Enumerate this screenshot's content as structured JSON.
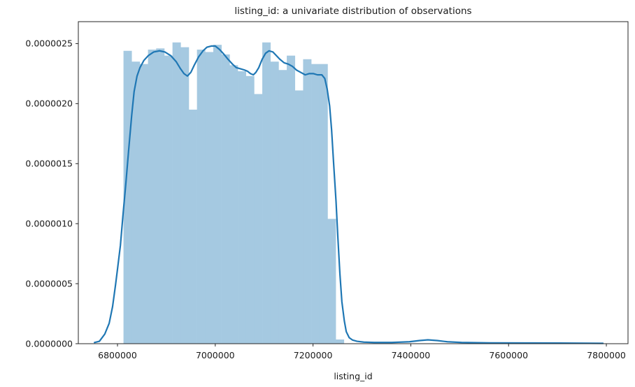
{
  "figure": {
    "background": "#ffffff"
  },
  "chart_data": {
    "type": "histogram_with_kde",
    "title": "listing_id: a univariate distribution of observations",
    "xlabel": "listing_id",
    "ylabel": "",
    "legend": "none",
    "grid": "off",
    "xlim": [
      6719900,
      7844300
    ],
    "ylim": [
      0,
      2.683e-06
    ],
    "x_ticks": {
      "values": [
        6800000,
        7000000,
        7200000,
        7400000,
        7600000,
        7800000
      ],
      "labels": [
        "6800000",
        "7000000",
        "7200000",
        "7400000",
        "7600000",
        "7800000"
      ]
    },
    "y_ticks": {
      "values": [
        0,
        5e-07,
        1e-06,
        1.5e-06,
        2e-06,
        2.5e-06
      ],
      "labels": [
        "0.0000000",
        "0.0000005",
        "0.0000010",
        "0.0000015",
        "0.0000020",
        "0.0000025"
      ]
    },
    "histogram": {
      "bin_start": 6812300,
      "bin_width": 16700,
      "fill_color": "#a5c9e1",
      "densities": [
        2.44e-06,
        2.35e-06,
        2.33e-06,
        2.45e-06,
        2.46e-06,
        2.4e-06,
        2.51e-06,
        2.47e-06,
        1.95e-06,
        2.45e-06,
        2.43e-06,
        2.49e-06,
        2.41e-06,
        2.32e-06,
        2.27e-06,
        2.23e-06,
        2.08e-06,
        2.51e-06,
        2.35e-06,
        2.28e-06,
        2.4e-06,
        2.11e-06,
        2.37e-06,
        2.33e-06,
        2.33e-06,
        1.04e-06,
        3.5e-08
      ]
    },
    "kde": {
      "line_color": "#1f77b4",
      "line_width": 2.2,
      "points": [
        [
          6753000,
          1e-08
        ],
        [
          6763000,
          2e-08
        ],
        [
          6774000,
          8e-08
        ],
        [
          6783000,
          1.7e-07
        ],
        [
          6790000,
          3.1e-07
        ],
        [
          6796000,
          4.9e-07
        ],
        [
          6800000,
          6.2e-07
        ],
        [
          6806000,
          8.2e-07
        ],
        [
          6811000,
          1.06e-06
        ],
        [
          6817000,
          1.33e-06
        ],
        [
          6823000,
          1.62e-06
        ],
        [
          6829000,
          1.9e-06
        ],
        [
          6834000,
          2.1e-06
        ],
        [
          6840000,
          2.23e-06
        ],
        [
          6846000,
          2.3e-06
        ],
        [
          6854000,
          2.36e-06
        ],
        [
          6863000,
          2.4e-06
        ],
        [
          6874000,
          2.43e-06
        ],
        [
          6886000,
          2.44e-06
        ],
        [
          6897000,
          2.43e-06
        ],
        [
          6909000,
          2.4e-06
        ],
        [
          6920000,
          2.35e-06
        ],
        [
          6929000,
          2.29e-06
        ],
        [
          6936000,
          2.25e-06
        ],
        [
          6943000,
          2.23e-06
        ],
        [
          6950000,
          2.26e-06
        ],
        [
          6957000,
          2.32e-06
        ],
        [
          6966000,
          2.39e-06
        ],
        [
          6975000,
          2.44e-06
        ],
        [
          6983000,
          2.47e-06
        ],
        [
          6992000,
          2.48e-06
        ],
        [
          7000000,
          2.48e-06
        ],
        [
          7009000,
          2.45e-06
        ],
        [
          7018000,
          2.41e-06
        ],
        [
          7026000,
          2.37e-06
        ],
        [
          7035000,
          2.33e-06
        ],
        [
          7043000,
          2.3e-06
        ],
        [
          7052000,
          2.29e-06
        ],
        [
          7060000,
          2.28e-06
        ],
        [
          7066000,
          2.27e-06
        ],
        [
          7072000,
          2.25e-06
        ],
        [
          7078000,
          2.24e-06
        ],
        [
          7083000,
          2.26e-06
        ],
        [
          7089000,
          2.3e-06
        ],
        [
          7096000,
          2.37e-06
        ],
        [
          7103000,
          2.42e-06
        ],
        [
          7110000,
          2.44e-06
        ],
        [
          7118000,
          2.43e-06
        ],
        [
          7125000,
          2.4e-06
        ],
        [
          7132000,
          2.37e-06
        ],
        [
          7141000,
          2.34e-06
        ],
        [
          7149000,
          2.33e-06
        ],
        [
          7158000,
          2.31e-06
        ],
        [
          7166000,
          2.28e-06
        ],
        [
          7175000,
          2.26e-06
        ],
        [
          7184000,
          2.24e-06
        ],
        [
          7192000,
          2.25e-06
        ],
        [
          7201000,
          2.25e-06
        ],
        [
          7209000,
          2.24e-06
        ],
        [
          7218000,
          2.24e-06
        ],
        [
          7224000,
          2.21e-06
        ],
        [
          7229000,
          2.12e-06
        ],
        [
          7234000,
          1.98e-06
        ],
        [
          7238000,
          1.78e-06
        ],
        [
          7242000,
          1.51e-06
        ],
        [
          7247000,
          1.19e-06
        ],
        [
          7251000,
          8.7e-07
        ],
        [
          7255000,
          5.8e-07
        ],
        [
          7259000,
          3.5e-07
        ],
        [
          7264000,
          1.9e-07
        ],
        [
          7268000,
          1e-07
        ],
        [
          7274000,
          5e-08
        ],
        [
          7281000,
          3e-08
        ],
        [
          7290000,
          2e-08
        ],
        [
          7304000,
          1.3e-08
        ],
        [
          7325000,
          1e-08
        ],
        [
          7361000,
          1e-08
        ],
        [
          7397000,
          1.6e-08
        ],
        [
          7418000,
          2.6e-08
        ],
        [
          7435000,
          3.2e-08
        ],
        [
          7454000,
          2.6e-08
        ],
        [
          7475000,
          1.6e-08
        ],
        [
          7504000,
          1e-08
        ],
        [
          7561000,
          7e-09
        ],
        [
          7633000,
          6e-09
        ],
        [
          7704000,
          5e-09
        ],
        [
          7793000,
          3e-09
        ]
      ]
    },
    "axis": {
      "spine_color": "#262626",
      "tick_color": "#262626",
      "tick_length": 4
    }
  }
}
